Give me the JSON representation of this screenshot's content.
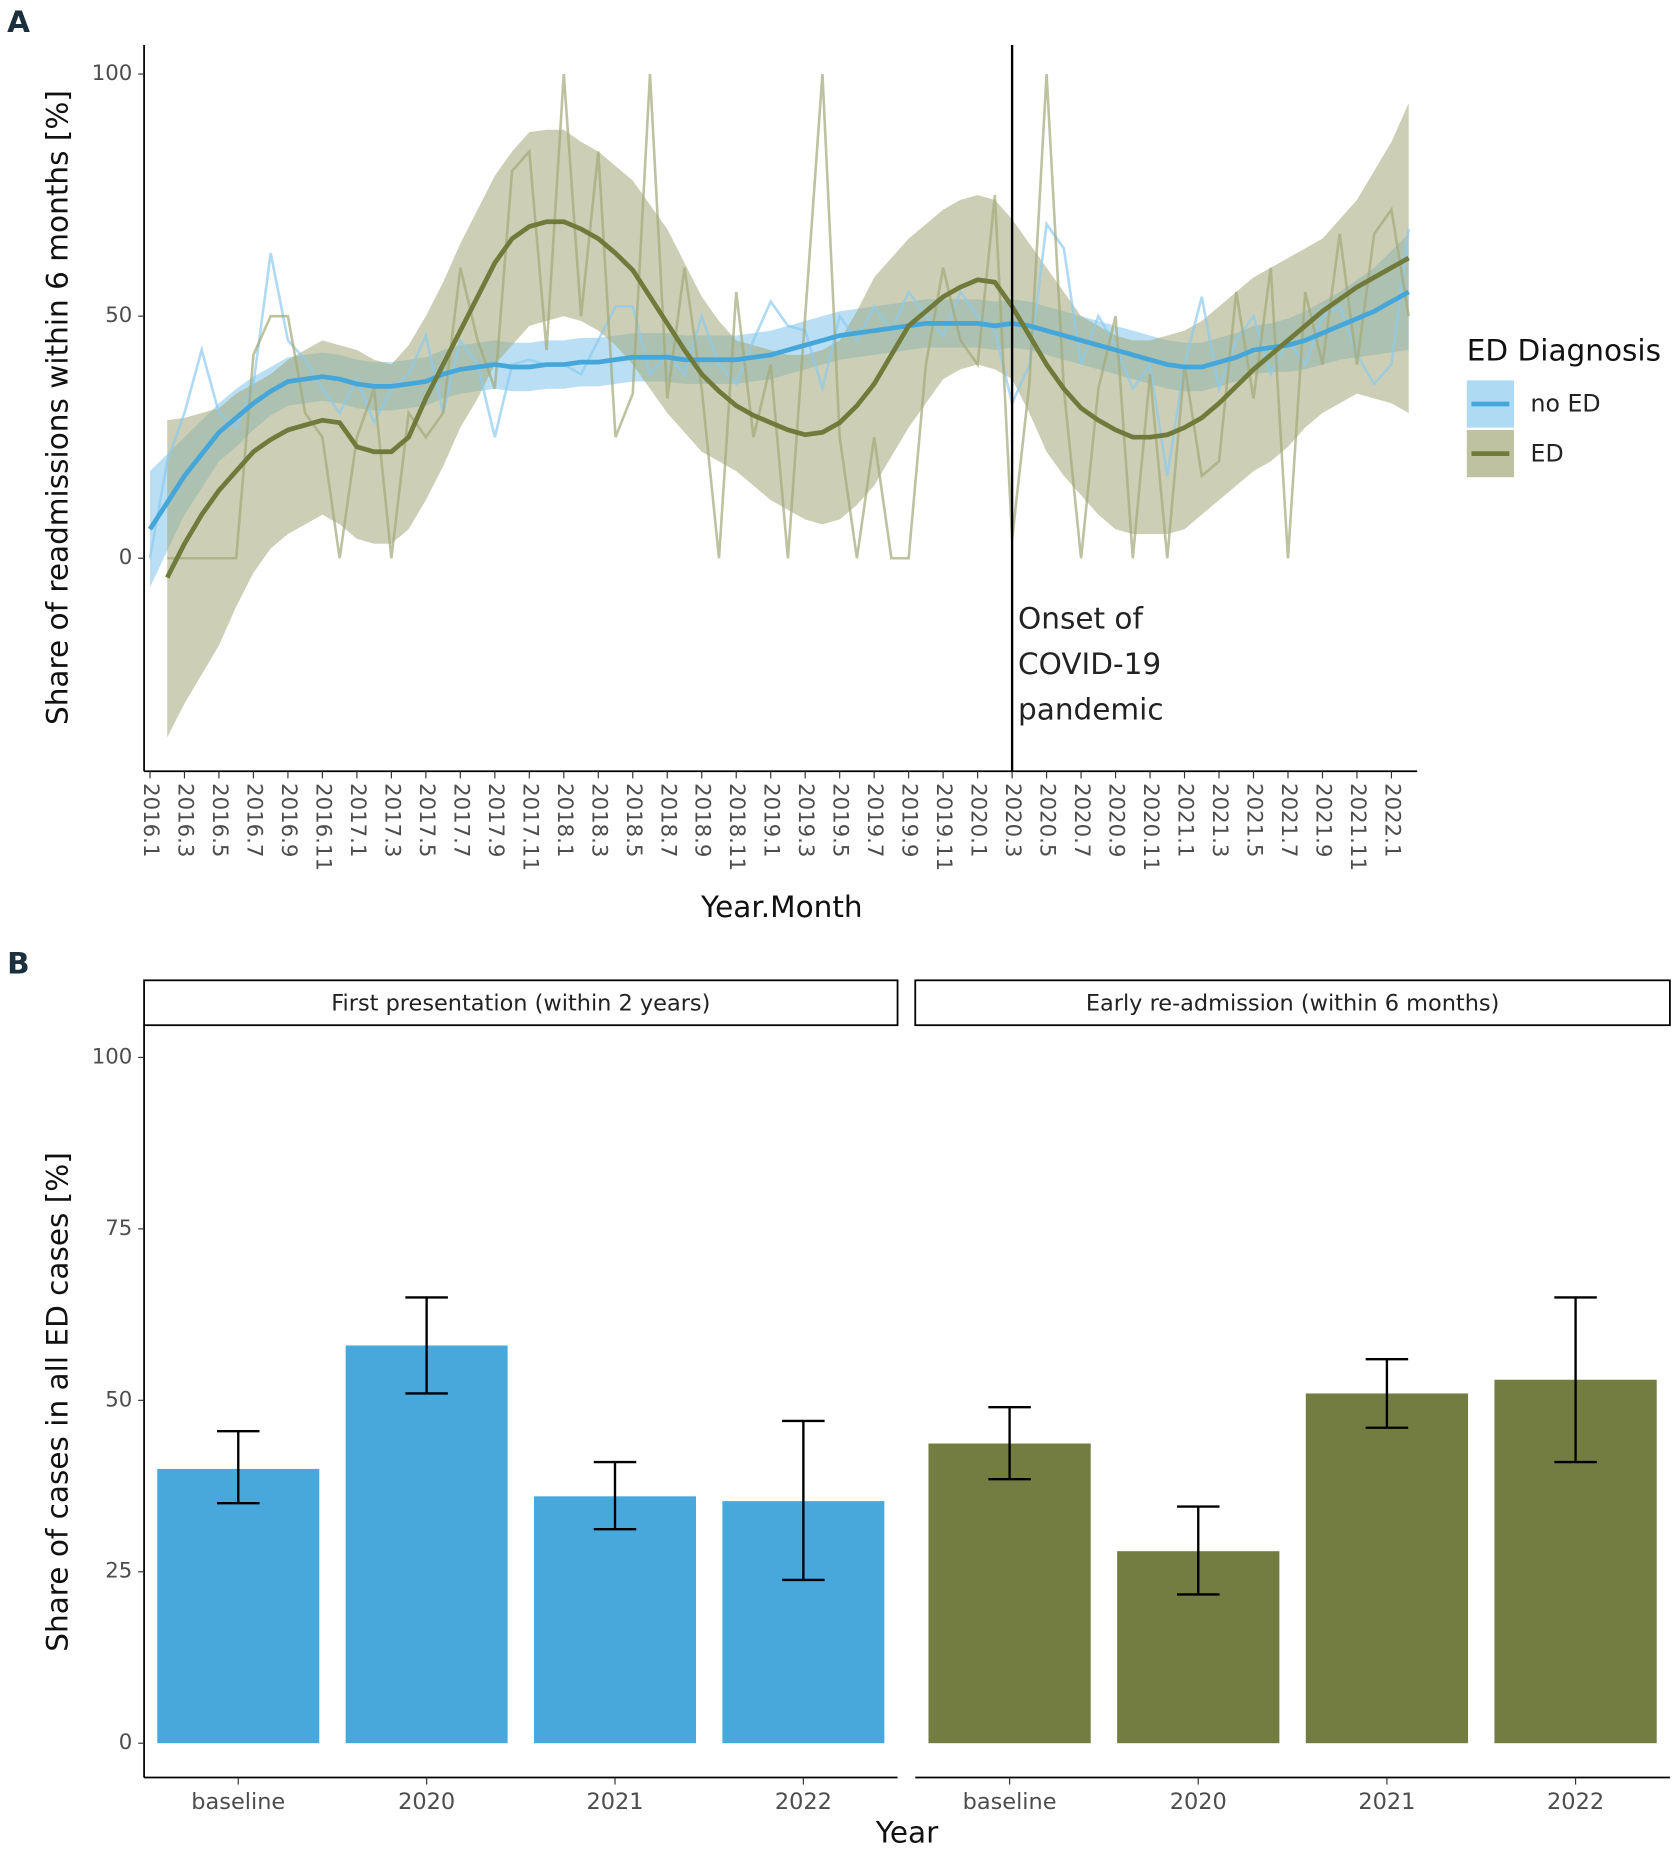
{
  "chart_data": [
    {
      "type": "line",
      "panel": "A",
      "xlabel": "Year.Month",
      "ylabel": "Share of readmissions within 6 months [%]",
      "categories": [
        "2016.1",
        null,
        "2016.3",
        null,
        "2016.5",
        null,
        "2016.7",
        null,
        "2016.9",
        null,
        "2016.11",
        null,
        "2017.1",
        null,
        "2017.3",
        null,
        "2017.5",
        null,
        "2017.7",
        null,
        "2017.9",
        null,
        "2017.11",
        null,
        "2018.1",
        null,
        "2018.3",
        null,
        "2018.5",
        null,
        "2018.7",
        null,
        "2018.9",
        null,
        "2018.11",
        null,
        "2019.1",
        null,
        "2019.3",
        null,
        "2019.5",
        null,
        "2019.7",
        null,
        "2019.9",
        null,
        "2019.11",
        null,
        "2020.1",
        null,
        "2020.3",
        null,
        "2020.5",
        null,
        "2020.7",
        null,
        "2020.9",
        null,
        "2020.11",
        null,
        "2021.1",
        null,
        "2021.3",
        null,
        "2021.5",
        null,
        "2021.7",
        null,
        "2021.9",
        null,
        "2021.11",
        null,
        "2022.1",
        null
      ],
      "ylim": [
        -44,
        106
      ],
      "yticks": [
        0,
        50,
        100
      ],
      "vline": "2020.3",
      "annotation": [
        "Onset of",
        "COVID-19",
        "pandemic"
      ],
      "legend_title": "ED Diagnosis",
      "series": [
        {
          "name": "no ED",
          "color": "#45a6da",
          "band_color": "#8ccaee",
          "raw": [
            0,
            20,
            30,
            43,
            30,
            27,
            36,
            63,
            45,
            41,
            35,
            30,
            37,
            28,
            35,
            38,
            46,
            30,
            45,
            40,
            25,
            40,
            41,
            40,
            40,
            38,
            45,
            52,
            52,
            38,
            42,
            38,
            50,
            40,
            36,
            45,
            53,
            48,
            47,
            35,
            50,
            45,
            52,
            47,
            55,
            50,
            46,
            55,
            50,
            47,
            32,
            40,
            69,
            64,
            40,
            50,
            44,
            35,
            40,
            17,
            40,
            54,
            35,
            45,
            50,
            38,
            45,
            40,
            50,
            52,
            42,
            36,
            40,
            68
          ],
          "values": [
            6,
            11.5,
            17,
            21.5,
            26,
            29,
            32,
            34.5,
            36.5,
            37,
            37.5,
            37,
            36,
            35.5,
            35.5,
            36,
            36.5,
            38,
            39,
            39.5,
            40,
            39.5,
            39.5,
            40,
            40,
            40.5,
            40.5,
            41,
            41.5,
            41.5,
            41.5,
            41,
            41,
            41,
            41,
            41.5,
            42,
            43,
            44,
            45,
            46,
            46.5,
            47,
            47.5,
            48,
            48.5,
            48.5,
            48.5,
            48.5,
            48,
            48.5,
            48,
            47,
            46,
            45,
            44,
            43,
            42,
            41,
            40,
            39.5,
            39.5,
            40.5,
            41.5,
            43,
            43.5,
            44,
            45,
            46.5,
            48,
            49.5,
            51,
            53,
            55
          ],
          "lower": [
            -6,
            1.5,
            9,
            14.5,
            20,
            23,
            26.5,
            29.5,
            31.5,
            32,
            32.5,
            32,
            31,
            30.5,
            30.5,
            31,
            31.5,
            33,
            34,
            34.5,
            35,
            34.5,
            34.5,
            35,
            35,
            35.5,
            35.5,
            36,
            36.5,
            36.5,
            36.5,
            36,
            36,
            36,
            36,
            36.5,
            37,
            38,
            39,
            40,
            41,
            41.5,
            42,
            42.5,
            43,
            43.5,
            43.5,
            43.5,
            43.5,
            43,
            43.5,
            43,
            42,
            41,
            40,
            39,
            38,
            37,
            36,
            35,
            34.5,
            34.5,
            35.5,
            36.5,
            38,
            38.5,
            38.5,
            39,
            40,
            41,
            41.5,
            42,
            42.5,
            43
          ],
          "upper": [
            18,
            21.5,
            25,
            28.5,
            32,
            35,
            37.5,
            39.5,
            41.5,
            42,
            42.5,
            42,
            41,
            40.5,
            40.5,
            41,
            41.5,
            43,
            44,
            44.5,
            45,
            44.5,
            44.5,
            45,
            45,
            45.5,
            45.5,
            46,
            46.5,
            46.5,
            46.5,
            46,
            46,
            46,
            46,
            46.5,
            47,
            48,
            49,
            50,
            51,
            51.5,
            52,
            52.5,
            53,
            53.5,
            53.5,
            53.5,
            53.5,
            53,
            53.5,
            53,
            52,
            51,
            50,
            49,
            48,
            47,
            46,
            45,
            44.5,
            44.5,
            45.5,
            46.5,
            48,
            48.5,
            49.5,
            51,
            53,
            55,
            57.5,
            60,
            63.5,
            67
          ]
        },
        {
          "name": "ED",
          "color": "#6f7a3b",
          "band_color": "#a3a878",
          "raw": [
            null,
            0,
            0,
            0,
            0,
            0,
            42,
            50,
            50,
            30,
            25,
            0,
            25,
            35,
            0,
            30,
            25,
            30,
            60,
            45,
            35,
            80,
            84,
            43,
            100,
            50,
            84,
            25,
            34,
            100,
            33,
            60,
            35,
            0,
            55,
            25,
            40,
            0,
            50,
            100,
            25,
            0,
            25,
            0,
            0,
            40,
            60,
            45,
            40,
            75,
            4,
            36,
            100,
            35,
            0,
            35,
            50,
            0,
            38,
            0,
            40,
            17,
            20,
            55,
            33,
            60,
            0,
            55,
            40,
            67,
            40,
            67,
            72,
            50
          ],
          "values": [
            null,
            -4,
            3,
            9,
            14,
            18,
            22,
            24.5,
            26.5,
            27.5,
            28.5,
            28,
            23,
            22,
            22,
            25,
            33,
            40,
            47,
            54,
            61,
            66,
            68.5,
            69.5,
            69.5,
            68,
            66,
            63,
            59.5,
            54,
            48.5,
            43,
            38,
            34.5,
            31.5,
            29.5,
            28,
            26.5,
            25.5,
            26,
            28,
            31.5,
            36,
            42,
            48,
            51,
            54,
            56,
            57.5,
            57,
            52,
            46,
            40,
            35,
            31,
            28.5,
            26.5,
            25,
            25,
            25.5,
            27,
            29,
            32,
            35.5,
            39,
            42,
            45,
            48,
            51,
            53.5,
            56,
            58,
            60,
            62
          ],
          "lower": [
            null,
            -37,
            -30,
            -24,
            -18,
            -10,
            -3,
            2,
            5,
            7,
            9,
            7,
            4,
            3,
            3,
            6,
            12,
            19,
            27,
            33,
            40,
            44,
            48,
            49,
            50,
            49,
            47,
            44,
            40,
            35,
            30,
            26,
            22,
            20,
            18,
            15,
            12,
            10,
            8,
            7,
            8,
            11,
            15,
            21,
            27,
            32,
            37,
            39,
            40,
            39,
            37,
            30,
            22,
            17,
            13,
            9,
            6,
            5,
            5,
            5,
            6,
            9,
            12,
            15,
            18,
            20,
            23,
            27,
            30,
            32,
            34,
            33,
            32,
            30
          ],
          "upper": [
            null,
            28.5,
            29,
            30,
            31,
            34,
            36,
            38,
            41,
            43,
            45,
            44,
            43,
            41,
            40,
            44,
            50,
            57,
            65,
            72,
            79,
            84,
            88,
            88.5,
            88.5,
            86,
            84,
            81,
            78,
            73,
            68,
            61,
            54,
            49,
            45,
            44,
            43,
            42,
            42,
            43,
            45,
            51,
            58,
            62,
            66,
            69,
            72,
            74,
            75,
            74,
            70,
            65,
            60,
            55,
            50,
            48,
            46,
            45,
            45,
            46,
            47,
            49,
            52,
            55,
            58,
            60,
            62,
            64,
            66,
            70,
            74,
            80,
            86,
            94
          ]
        }
      ]
    },
    {
      "type": "bar",
      "panel": "B",
      "xlabel": "Year",
      "ylabel": "Share of cases in all ED cases [%]",
      "categories": [
        "baseline",
        "2020",
        "2021",
        "2022"
      ],
      "ylim": [
        -5,
        104.7
      ],
      "yticks": [
        0,
        25,
        50,
        75,
        100
      ],
      "facets": [
        {
          "title": "First presentation (within 2 years)",
          "color": "#49a8db",
          "values": [
            40,
            58,
            36,
            35.3
          ],
          "lower": [
            35,
            51,
            31.2,
            23.8
          ],
          "upper": [
            45.5,
            65,
            41,
            47
          ]
        },
        {
          "title": "Early re-admission (within 6 months)",
          "color": "#737d42",
          "values": [
            43.7,
            28,
            51,
            53
          ],
          "lower": [
            38.5,
            21.7,
            46,
            41
          ],
          "upper": [
            49,
            34.5,
            56,
            65
          ]
        }
      ]
    }
  ]
}
